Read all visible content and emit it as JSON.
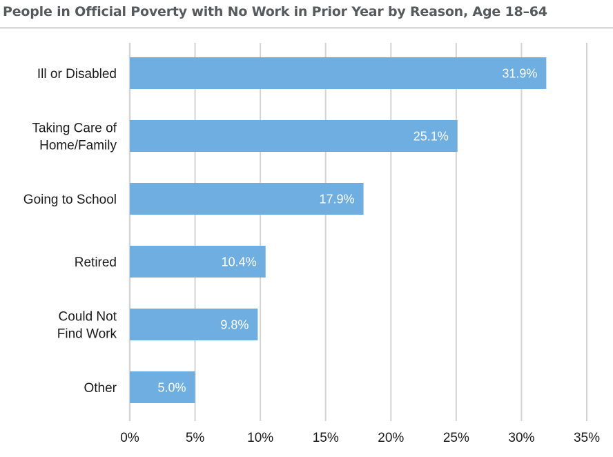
{
  "chart_data": {
    "type": "bar",
    "orientation": "horizontal",
    "title": "People in Official Poverty with No Work in Prior Year by Reason, Age 18–64",
    "categories": [
      [
        "Ill or Disabled"
      ],
      [
        "Taking Care of",
        "Home/Family"
      ],
      [
        "Going to School"
      ],
      [
        "Retired"
      ],
      [
        "Could Not",
        "Find Work"
      ],
      [
        "Other"
      ]
    ],
    "values": [
      31.9,
      25.1,
      17.9,
      10.4,
      9.8,
      5.0
    ],
    "value_labels": [
      "31.9%",
      "25.1%",
      "17.9%",
      "10.4%",
      "9.8%",
      "5.0%"
    ],
    "xlim": [
      0,
      35
    ],
    "xticks": [
      0,
      5,
      10,
      15,
      20,
      25,
      30,
      35
    ],
    "xtick_labels": [
      "0%",
      "5%",
      "10%",
      "15%",
      "20%",
      "25%",
      "30%",
      "35%"
    ],
    "grid": true,
    "legend": "none",
    "bar_color": "#6eaee0",
    "grid_color": "#d4d4d4"
  }
}
